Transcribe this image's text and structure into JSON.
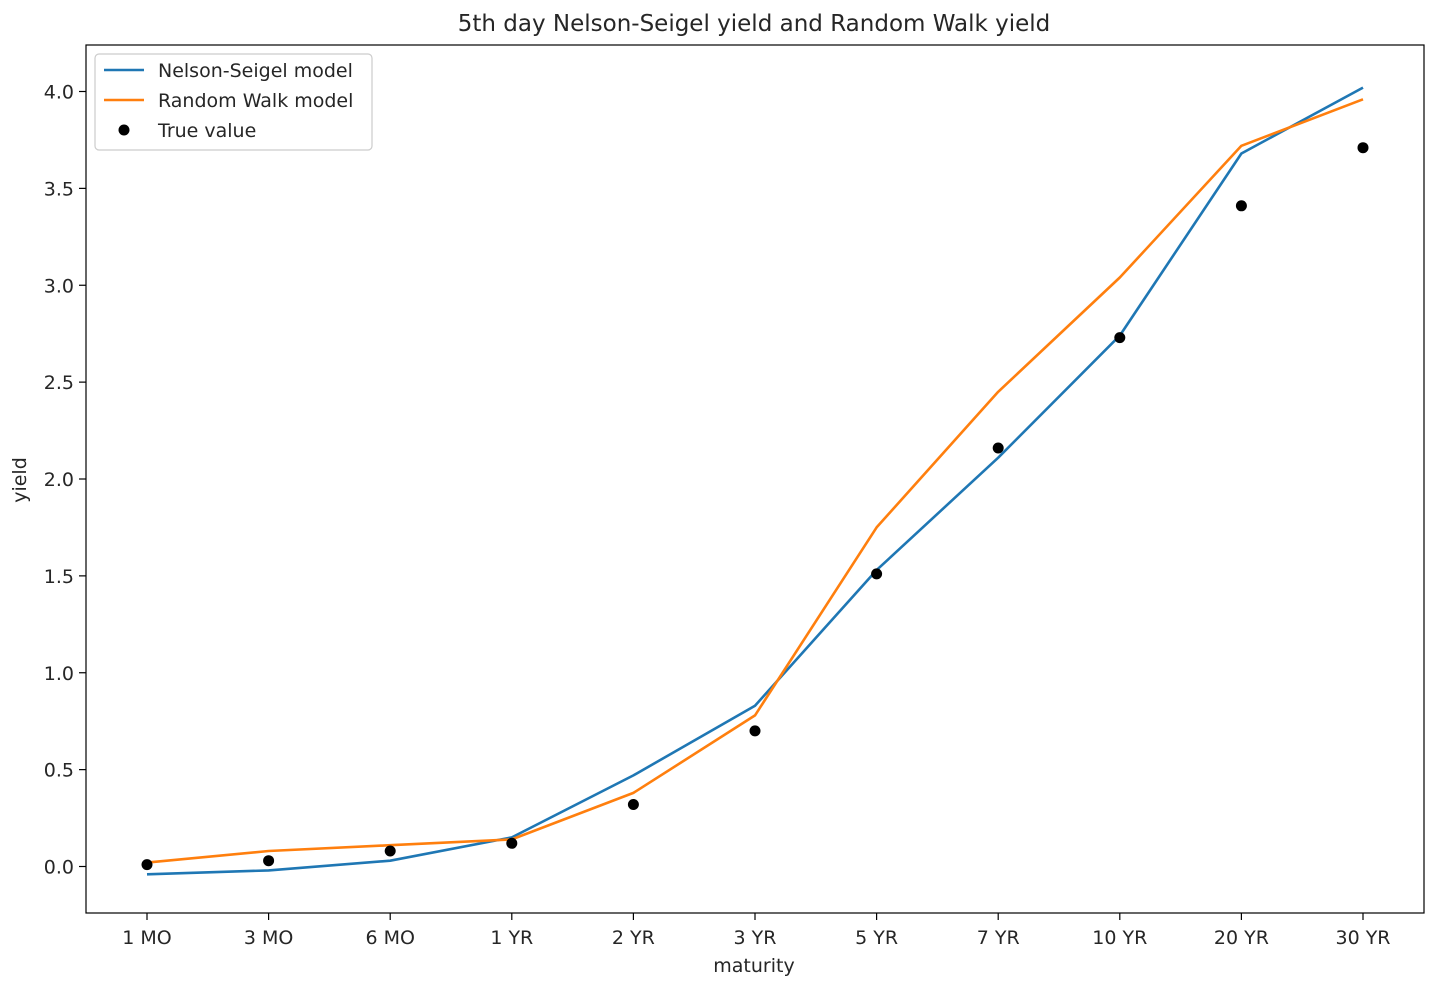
{
  "chart_data": {
    "type": "line",
    "title": "5th day Nelson-Seigel yield and Random Walk yield",
    "xlabel": "maturity",
    "ylabel": "yield",
    "categories": [
      "1 MO",
      "3 MO",
      "6 MO",
      "1 YR",
      "2 YR",
      "3 YR",
      "5 YR",
      "7 YR",
      "10 YR",
      "20 YR",
      "30 YR"
    ],
    "ylim": [
      -0.24,
      4.24
    ],
    "yticks": [
      "0.0",
      "0.5",
      "1.0",
      "1.5",
      "2.0",
      "2.5",
      "3.0",
      "3.5",
      "4.0"
    ],
    "grid": false,
    "legend_position": "upper-left",
    "series": [
      {
        "name": "Nelson-Seigel model",
        "kind": "line",
        "color": "#1f77b4",
        "values": [
          -0.04,
          -0.02,
          0.03,
          0.15,
          0.47,
          0.83,
          1.53,
          2.11,
          2.74,
          3.68,
          4.02
        ]
      },
      {
        "name": "Random Walk model",
        "kind": "line",
        "color": "#ff7f0e",
        "values": [
          0.02,
          0.08,
          0.11,
          0.14,
          0.38,
          0.78,
          1.75,
          2.45,
          3.04,
          3.72,
          3.96
        ]
      },
      {
        "name": "True value",
        "kind": "scatter",
        "color": "#000000",
        "values": [
          0.01,
          0.03,
          0.08,
          0.12,
          0.32,
          0.7,
          1.51,
          2.16,
          2.73,
          3.41,
          3.71
        ]
      }
    ]
  }
}
